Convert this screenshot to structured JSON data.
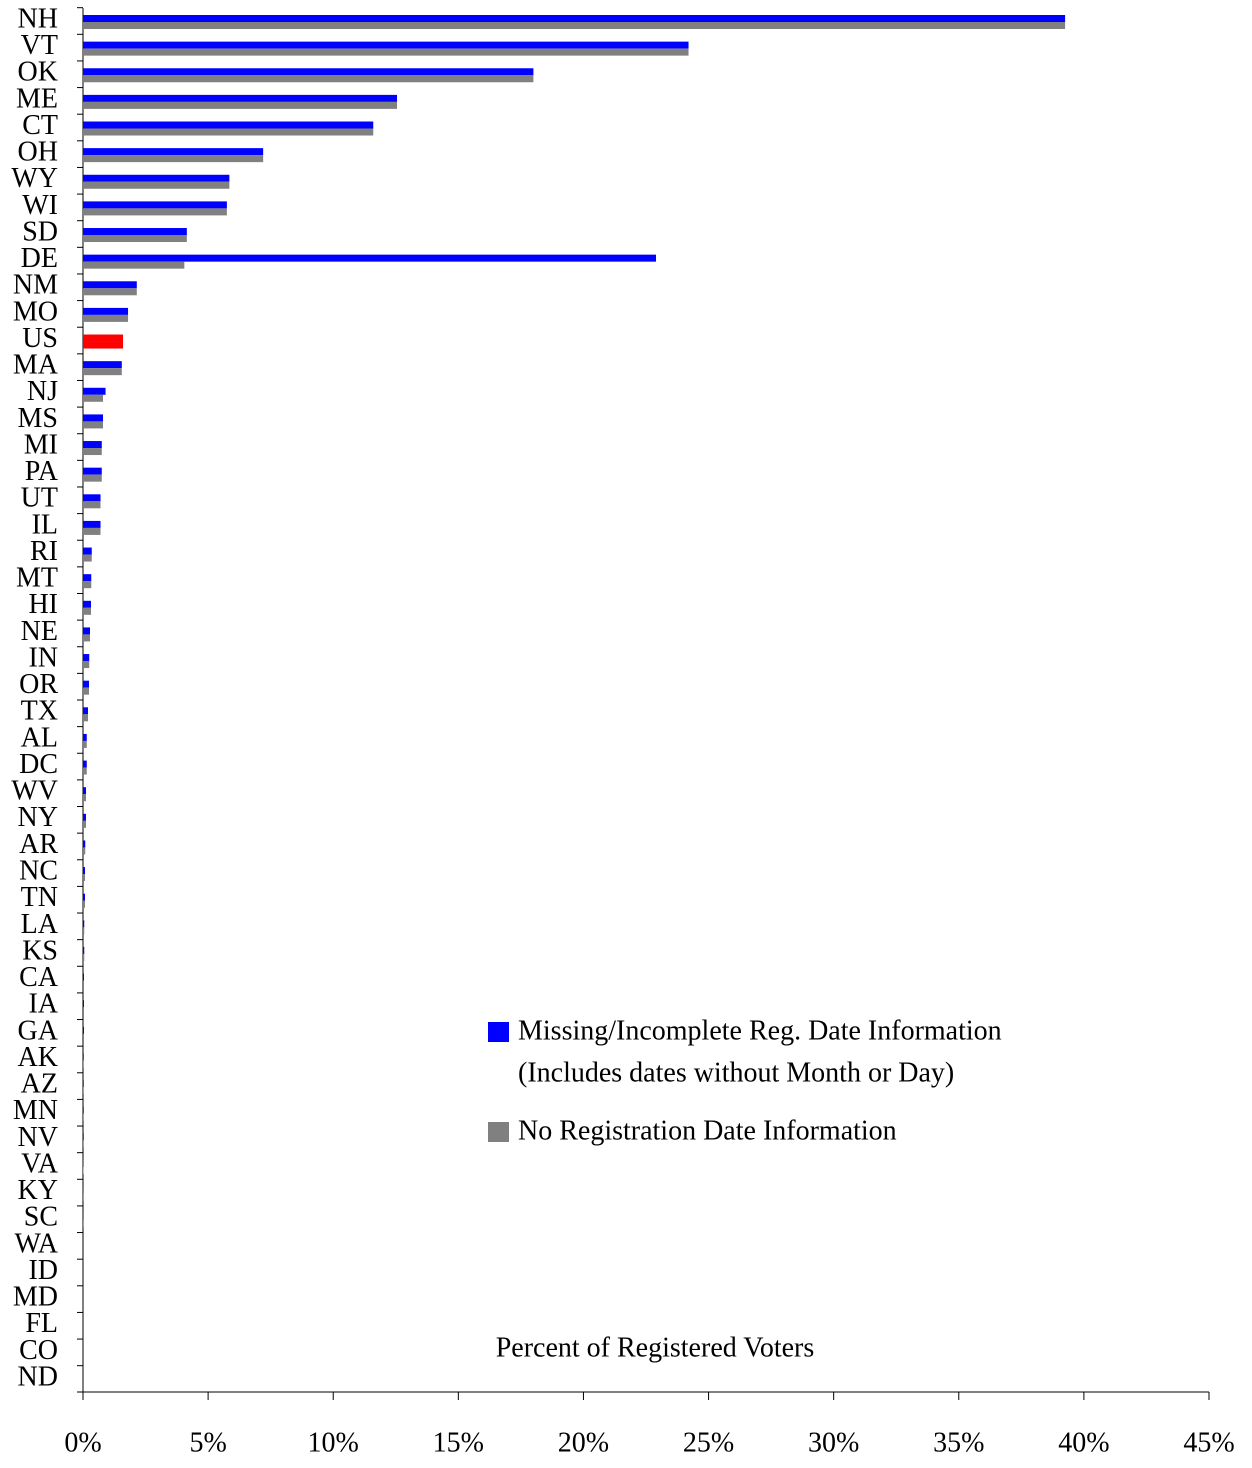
{
  "chart_data": {
    "type": "bar",
    "orientation": "horizontal",
    "xlabel": "Percent of Registered Voters",
    "categories": [
      "NH",
      "VT",
      "OK",
      "ME",
      "CT",
      "OH",
      "WY",
      "WI",
      "SD",
      "DE",
      "NM",
      "MO",
      "US",
      "MA",
      "NJ",
      "MS",
      "MI",
      "PA",
      "UT",
      "IL",
      "RI",
      "MT",
      "HI",
      "NE",
      "IN",
      "OR",
      "TX",
      "AL",
      "DC",
      "WV",
      "NY",
      "AR",
      "NC",
      "TN",
      "LA",
      "KS",
      "CA",
      "IA",
      "GA",
      "AK",
      "AZ",
      "MN",
      "NV",
      "VA",
      "KY",
      "SC",
      "WA",
      "ID",
      "MD",
      "FL",
      "CO",
      "ND"
    ],
    "series": [
      {
        "name": "Missing/Incomplete Reg. Date Information",
        "color": "#0000ff",
        "values": [
          39.25,
          24.2,
          18.0,
          12.55,
          11.6,
          7.2,
          5.85,
          5.75,
          4.15,
          22.9,
          2.15,
          1.8,
          1.6,
          1.55,
          0.9,
          0.8,
          0.75,
          0.75,
          0.7,
          0.7,
          0.35,
          0.33,
          0.32,
          0.28,
          0.25,
          0.24,
          0.2,
          0.15,
          0.15,
          0.12,
          0.12,
          0.09,
          0.08,
          0.08,
          0.05,
          0.05,
          0.04,
          0.04,
          0.04,
          0.03,
          0.03,
          0.03,
          0.03,
          0.02,
          0.01,
          0.01,
          0,
          0,
          0,
          0,
          0,
          0
        ]
      },
      {
        "name": "No Registration Date Information",
        "color": "#808080",
        "values": [
          39.25,
          24.2,
          18.0,
          12.55,
          11.6,
          7.2,
          5.85,
          5.75,
          4.15,
          4.05,
          2.15,
          1.8,
          1.6,
          1.55,
          0.8,
          0.8,
          0.75,
          0.75,
          0.7,
          0.7,
          0.35,
          0.33,
          0.32,
          0.28,
          0.25,
          0.24,
          0.2,
          0.15,
          0.15,
          0.12,
          0.12,
          0.09,
          0.08,
          0.08,
          0.05,
          0.05,
          0.04,
          0.04,
          0.04,
          0.03,
          0.03,
          0.03,
          0.03,
          0.02,
          0.01,
          0.01,
          0,
          0,
          0,
          0,
          0,
          0
        ]
      }
    ],
    "legend_note": "(Includes dates without Month or Day)",
    "highlight_category": "US",
    "highlight_color": "#ff0000",
    "xlim": [
      0,
      45
    ],
    "xticks": [
      {
        "value": 0,
        "label": "0%"
      },
      {
        "value": 5,
        "label": "5%"
      },
      {
        "value": 10,
        "label": "10%"
      },
      {
        "value": 15,
        "label": "15%"
      },
      {
        "value": 20,
        "label": "20%"
      },
      {
        "value": 25,
        "label": "25%"
      },
      {
        "value": 30,
        "label": "30%"
      },
      {
        "value": 35,
        "label": "35%"
      },
      {
        "value": 40,
        "label": "40%"
      },
      {
        "value": 45,
        "label": "45%"
      }
    ]
  }
}
